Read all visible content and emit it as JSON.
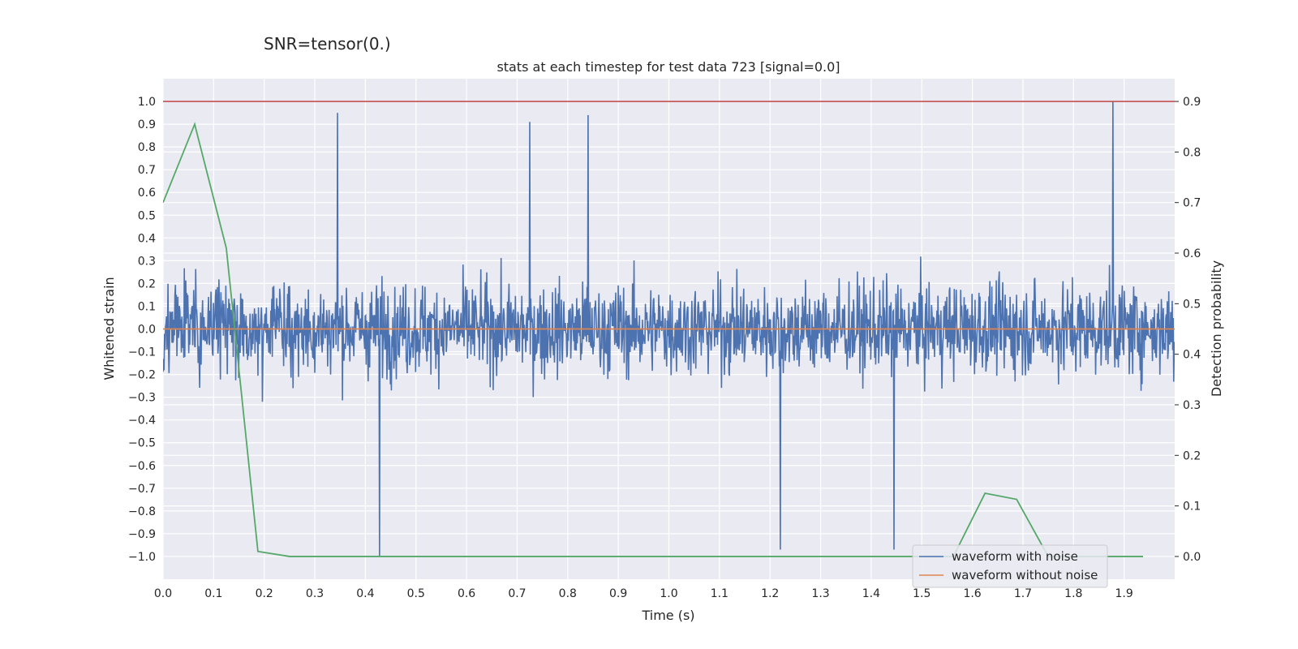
{
  "suptitle": "SNR=tensor(0.)",
  "chart_data": {
    "type": "line",
    "title": "stats at each timestep for test data 723 [signal=0.0]",
    "xlabel": "Time (s)",
    "ylabel": "Whitened strain",
    "y2label": "Detection probability",
    "xlim": [
      0.0,
      2.0
    ],
    "ylim": [
      -1.1,
      1.1
    ],
    "y2lim": [
      -0.045,
      0.945
    ],
    "xticks": [
      "0.0",
      "0.1",
      "0.2",
      "0.3",
      "0.4",
      "0.5",
      "0.6",
      "0.7",
      "0.8",
      "0.9",
      "1.0",
      "1.1",
      "1.2",
      "1.3",
      "1.4",
      "1.5",
      "1.6",
      "1.7",
      "1.8",
      "1.9"
    ],
    "yticks": [
      "1.0",
      "0.9",
      "0.8",
      "0.7",
      "0.6",
      "0.5",
      "0.4",
      "0.3",
      "0.2",
      "0.1",
      "0.0",
      "−0.1",
      "−0.2",
      "−0.3",
      "−0.4",
      "−0.5",
      "−0.6",
      "−0.7",
      "−0.8",
      "−0.9",
      "−1.0"
    ],
    "y2ticks": [
      "0.9",
      "0.8",
      "0.7",
      "0.6",
      "0.5",
      "0.4",
      "0.3",
      "0.2",
      "0.1",
      "0.0"
    ],
    "threshold": {
      "y2": 0.9,
      "color": "#c44e52"
    },
    "series": [
      {
        "name": "waveform with noise",
        "color": "#4c72b0",
        "axis": "left",
        "samples": 2048,
        "amplitude_range": [
          -1.0,
          1.0
        ],
        "peaks": [
          {
            "x": 0.345,
            "y": 0.95
          },
          {
            "x": 0.725,
            "y": 0.91
          },
          {
            "x": 0.84,
            "y": 0.94
          },
          {
            "x": 1.878,
            "y": 1.0
          },
          {
            "x": 0.428,
            "y": -1.0
          },
          {
            "x": 1.22,
            "y": -0.97
          },
          {
            "x": 1.445,
            "y": -0.97
          }
        ]
      },
      {
        "name": "waveform without noise",
        "color": "#dd8452",
        "axis": "left",
        "x": [
          0.0,
          2.0
        ],
        "y": [
          0.0,
          0.0
        ]
      },
      {
        "name": "detection probability",
        "color": "#55a868",
        "axis": "right",
        "x": [
          0.0,
          0.0625,
          0.125,
          0.1875,
          0.25,
          0.3125,
          0.375,
          0.4375,
          0.5,
          0.5625,
          0.625,
          0.6875,
          0.75,
          0.8125,
          0.875,
          0.9375,
          1.0,
          1.0625,
          1.125,
          1.1875,
          1.25,
          1.3125,
          1.375,
          1.4375,
          1.5,
          1.5625,
          1.625,
          1.6875,
          1.75,
          1.8125,
          1.875,
          1.9375
        ],
        "y": [
          0.7,
          0.855,
          0.61,
          0.01,
          0.0,
          0.0,
          0.0,
          0.0,
          0.0,
          0.0,
          0.0,
          0.0,
          0.0,
          0.0,
          0.0,
          0.0,
          0.0,
          0.0,
          0.0,
          0.0,
          0.0,
          0.0,
          0.0,
          0.0,
          0.0,
          0.0,
          0.125,
          0.113,
          0.0,
          0.0,
          0.0,
          0.0
        ]
      }
    ],
    "legend": {
      "placement": "lower-right",
      "entries": [
        "waveform with noise",
        "waveform without noise"
      ]
    }
  }
}
